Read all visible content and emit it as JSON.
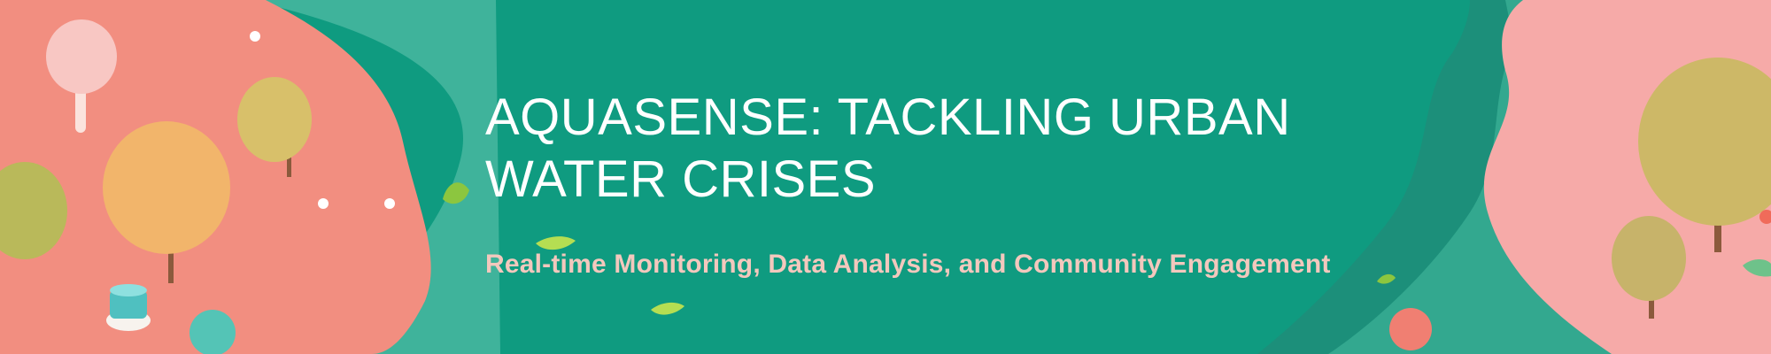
{
  "banner": {
    "title_line1": "AQUASENSE: TACKLING URBAN",
    "title_line2": "WATER CRISES",
    "subtitle": "Real-time Monitoring, Data Analysis, and Community Engagement"
  },
  "colors": {
    "background": "#0f9b80",
    "coral": "#f28e80",
    "pink": "#f6aaa8",
    "teal_light": "#3fb39b",
    "title": "#ffffff",
    "subtitle": "#f3c8bd"
  },
  "icons": [
    "tree-icon",
    "leaf-icon",
    "lollipop-tree-icon",
    "cup-icon",
    "ball-icon"
  ]
}
